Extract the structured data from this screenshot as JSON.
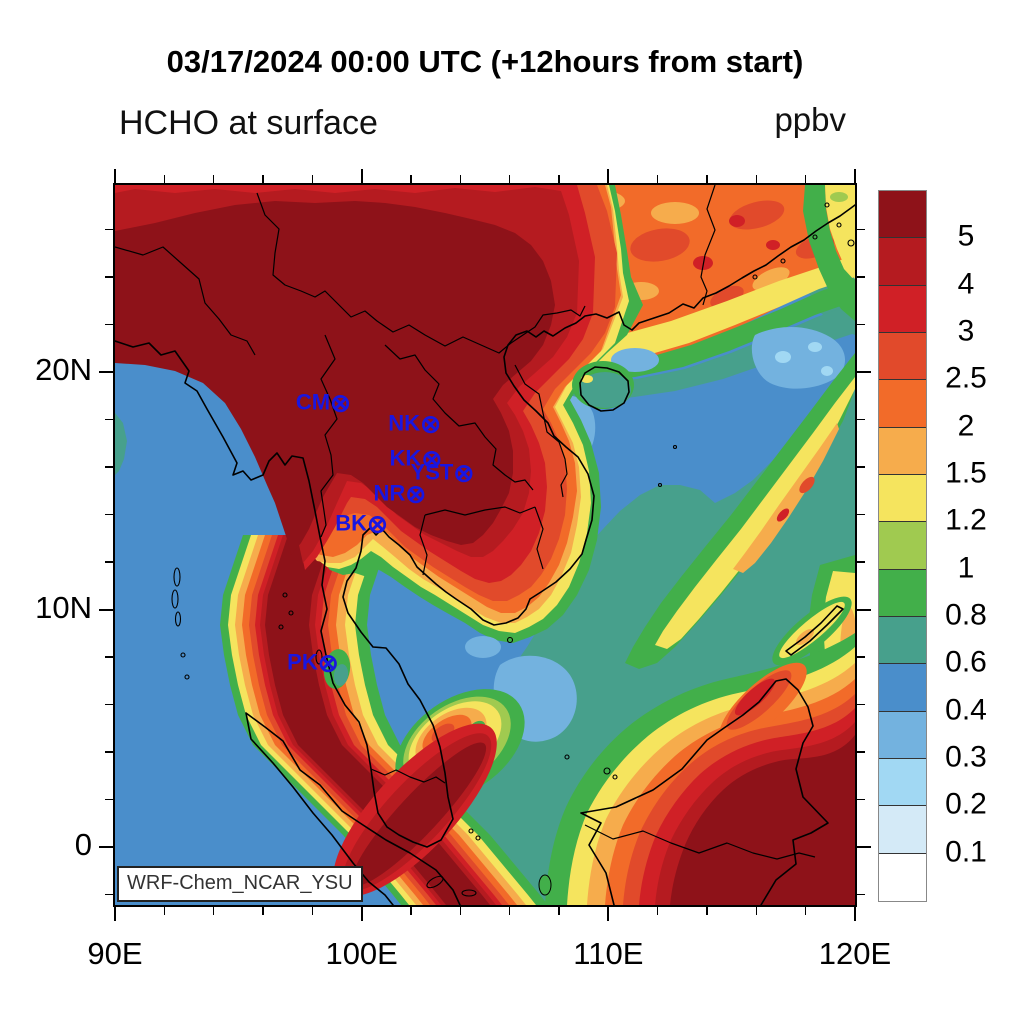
{
  "title": "03/17/2024 00:00 UTC (+12hours from start)",
  "subtitle": "HCHO at surface",
  "units_label": "ppbv",
  "watermark": "WRF-Chem_NCAR_YSU",
  "chart_data": {
    "type": "heatmap",
    "title": "HCHO at surface",
    "units": "ppbv",
    "valid_time": "03/17/2024 00:00 UTC",
    "forecast_note": "+12hours from start",
    "model_label": "WRF-Chem_NCAR_YSU",
    "x_axis": {
      "ticks": [
        {
          "label": "90E",
          "lon": 90
        },
        {
          "label": "100E",
          "lon": 100
        },
        {
          "label": "110E",
          "lon": 110
        },
        {
          "label": "120E",
          "lon": 120
        }
      ],
      "minor_step_deg": 2,
      "range": [
        90,
        120
      ]
    },
    "y_axis": {
      "ticks": [
        {
          "label": "0",
          "lat": 0
        },
        {
          "label": "10N",
          "lat": 10
        },
        {
          "label": "20N",
          "lat": 20
        }
      ],
      "minor_step_deg": 2,
      "range": [
        -2.4,
        27.9
      ]
    },
    "colorbar": {
      "labels_top_to_bottom": [
        "5",
        "4",
        "3",
        "2.5",
        "2",
        "1.5",
        "1.2",
        "1",
        "0.8",
        "0.6",
        "0.4",
        "0.3",
        "0.2",
        "0.1"
      ],
      "levels": [
        0.1,
        0.2,
        0.3,
        0.4,
        0.6,
        0.8,
        1,
        1.2,
        1.5,
        2,
        2.5,
        3,
        4,
        5
      ],
      "colors_low_to_high": [
        "#ffffff",
        "#d4eaf7",
        "#a1d8f3",
        "#73b2df",
        "#4a8ecb",
        "#47a08c",
        "#42af4a",
        "#a0ca50",
        "#f5e45e",
        "#f6ac4c",
        "#f26b29",
        "#e14a2b",
        "#d02026",
        "#b51b20",
        "#8e1219"
      ]
    },
    "stations": [
      {
        "label": "CM",
        "lon": 99.0,
        "lat": 18.7
      },
      {
        "label": "NK",
        "lon": 102.65,
        "lat": 17.8
      },
      {
        "label": "KK",
        "lon": 102.7,
        "lat": 16.35
      },
      {
        "label": "YST",
        "lon": 104.0,
        "lat": 15.75
      },
      {
        "label": "NR",
        "lon": 102.05,
        "lat": 14.85
      },
      {
        "label": "BK",
        "lon": 100.5,
        "lat": 13.6
      },
      {
        "label": "PK",
        "lon": 98.5,
        "lat": 7.75
      }
    ],
    "station_marker": "⊗",
    "high_regions": [
      "Myanmar / northern Thailand / Laos / northern Vietnam > 5 ppbv",
      "Cambodia > 5 ppbv",
      "west Thai peninsula coastal plume > 5 ppbv",
      "Sumatra > 5 ppbv",
      "Borneo > 5 ppbv",
      "southern China 2-3 ppbv"
    ],
    "low_regions": [
      "South China Sea 0.2-0.6 ppbv",
      "Bay of Bengal / Andaman Sea 0.3-0.6 ppbv",
      "Gulf of Thailand 0.4-0.8 ppbv"
    ]
  },
  "colors": {
    "station": "#1a16e0",
    "coastline": "#000000",
    "frame": "#000000"
  }
}
